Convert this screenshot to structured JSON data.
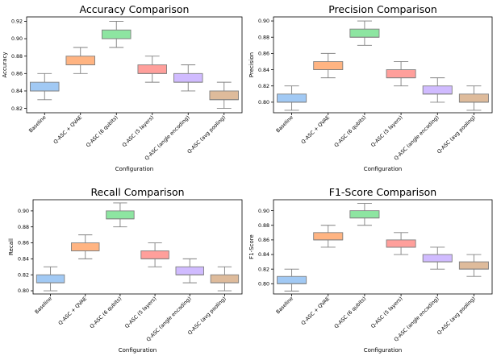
{
  "chart_data": [
    {
      "type": "box",
      "title": "Accuracy Comparison",
      "xlabel": "Configuration",
      "ylabel": "Accuracy",
      "ylim": [
        0.815,
        0.925
      ],
      "yticks": [
        "0.82",
        "0.84",
        "0.86",
        "0.88",
        "0.90",
        "0.92"
      ],
      "categories": [
        "Baseline",
        "Q-ASC + QVAE",
        "Q-ASC (6 qubits)",
        "Q-ASC (5 layers)",
        "Q-ASC (angle encoding)",
        "Q-ASC (avg pooling)"
      ],
      "boxes": [
        {
          "whislo": 0.83,
          "q1": 0.84,
          "med": 0.84,
          "q3": 0.85,
          "whishi": 0.86
        },
        {
          "whislo": 0.86,
          "q1": 0.87,
          "med": 0.87,
          "q3": 0.88,
          "whishi": 0.89
        },
        {
          "whislo": 0.89,
          "q1": 0.9,
          "med": 0.9,
          "q3": 0.91,
          "whishi": 0.92
        },
        {
          "whislo": 0.85,
          "q1": 0.86,
          "med": 0.86,
          "q3": 0.87,
          "whishi": 0.88
        },
        {
          "whislo": 0.84,
          "q1": 0.85,
          "med": 0.85,
          "q3": 0.86,
          "whishi": 0.87
        },
        {
          "whislo": 0.82,
          "q1": 0.83,
          "med": 0.83,
          "q3": 0.84,
          "whishi": 0.85
        }
      ]
    },
    {
      "type": "box",
      "title": "Precision Comparison",
      "xlabel": "Configuration",
      "ylabel": "Precision",
      "ylim": [
        0.787,
        0.905
      ],
      "yticks": [
        "0.80",
        "0.82",
        "0.84",
        "0.86",
        "0.88",
        "0.90"
      ],
      "categories": [
        "Baseline",
        "Q-ASC + QVAE",
        "Q-ASC (6 qubits)",
        "Q-ASC (5 layers)",
        "Q-ASC (angle encoding)",
        "Q-ASC (avg pooling)"
      ],
      "boxes": [
        {
          "whislo": 0.79,
          "q1": 0.8,
          "med": 0.8,
          "q3": 0.81,
          "whishi": 0.82
        },
        {
          "whislo": 0.83,
          "q1": 0.84,
          "med": 0.84,
          "q3": 0.85,
          "whishi": 0.86
        },
        {
          "whislo": 0.87,
          "q1": 0.88,
          "med": 0.88,
          "q3": 0.89,
          "whishi": 0.9
        },
        {
          "whislo": 0.82,
          "q1": 0.83,
          "med": 0.83,
          "q3": 0.84,
          "whishi": 0.85
        },
        {
          "whislo": 0.8,
          "q1": 0.81,
          "med": 0.81,
          "q3": 0.82,
          "whishi": 0.83
        },
        {
          "whislo": 0.79,
          "q1": 0.8,
          "med": 0.8,
          "q3": 0.81,
          "whishi": 0.82
        }
      ]
    },
    {
      "type": "box",
      "title": "Recall Comparison",
      "xlabel": "Configuration",
      "ylabel": "Recall",
      "ylim": [
        0.796,
        0.914
      ],
      "yticks": [
        "0.80",
        "0.82",
        "0.84",
        "0.86",
        "0.88",
        "0.90"
      ],
      "categories": [
        "Baseline",
        "Q-ASC + QVAE",
        "Q-ASC (6 qubits)",
        "Q-ASC (5 layers)",
        "Q-ASC (angle encoding)",
        "Q-ASC (avg pooling)"
      ],
      "boxes": [
        {
          "whislo": 0.8,
          "q1": 0.81,
          "med": 0.81,
          "q3": 0.82,
          "whishi": 0.83
        },
        {
          "whislo": 0.84,
          "q1": 0.85,
          "med": 0.85,
          "q3": 0.86,
          "whishi": 0.87
        },
        {
          "whislo": 0.88,
          "q1": 0.89,
          "med": 0.89,
          "q3": 0.9,
          "whishi": 0.91
        },
        {
          "whislo": 0.83,
          "q1": 0.84,
          "med": 0.84,
          "q3": 0.85,
          "whishi": 0.86
        },
        {
          "whislo": 0.81,
          "q1": 0.82,
          "med": 0.82,
          "q3": 0.83,
          "whishi": 0.84
        },
        {
          "whislo": 0.8,
          "q1": 0.81,
          "med": 0.81,
          "q3": 0.82,
          "whishi": 0.83
        }
      ]
    },
    {
      "type": "box",
      "title": "F1-Score Comparison",
      "xlabel": "Configuration",
      "ylabel": "F1-Score",
      "ylim": [
        0.786,
        0.915
      ],
      "yticks": [
        "0.80",
        "0.82",
        "0.84",
        "0.86",
        "0.88",
        "0.90"
      ],
      "categories": [
        "Baseline",
        "Q-ASC + QVAE",
        "Q-ASC (6 qubits)",
        "Q-ASC (5 layers)",
        "Q-ASC (angle encoding)",
        "Q-ASC (avg pooling)"
      ],
      "boxes": [
        {
          "whislo": 0.79,
          "q1": 0.8,
          "med": 0.8,
          "q3": 0.81,
          "whishi": 0.82
        },
        {
          "whislo": 0.85,
          "q1": 0.86,
          "med": 0.86,
          "q3": 0.87,
          "whishi": 0.88
        },
        {
          "whislo": 0.88,
          "q1": 0.89,
          "med": 0.89,
          "q3": 0.9,
          "whishi": 0.91
        },
        {
          "whislo": 0.84,
          "q1": 0.85,
          "med": 0.85,
          "q3": 0.86,
          "whishi": 0.87
        },
        {
          "whislo": 0.82,
          "q1": 0.83,
          "med": 0.83,
          "q3": 0.84,
          "whishi": 0.85
        },
        {
          "whislo": 0.81,
          "q1": 0.82,
          "med": 0.82,
          "q3": 0.83,
          "whishi": 0.84
        }
      ]
    }
  ],
  "colors": [
    "#a1c9f4",
    "#ffb482",
    "#8de5a1",
    "#ff9f9b",
    "#d0bbff",
    "#debb9b"
  ],
  "line_color": "#808080"
}
